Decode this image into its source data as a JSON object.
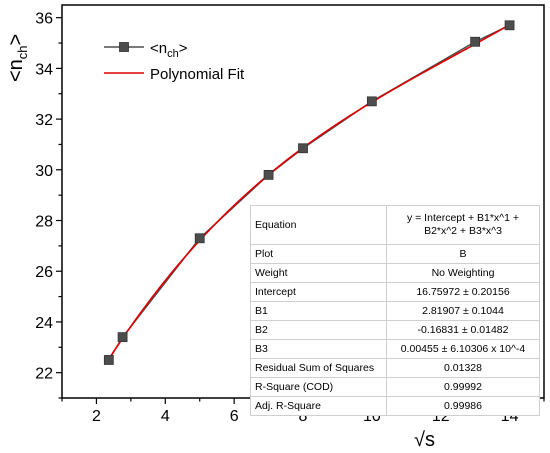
{
  "chart_data": {
    "type": "line",
    "xlabel": "√s",
    "ylabel": "<n",
    "ylabel_sub": "ch",
    "ylabel_end": ">",
    "xlim": [
      1,
      15
    ],
    "ylim": [
      21,
      36.5
    ],
    "xticks": [
      2,
      4,
      6,
      8,
      10,
      12,
      14
    ],
    "yticks": [
      22,
      24,
      26,
      28,
      30,
      32,
      34,
      36
    ],
    "grid": false,
    "legend_position": "top-left",
    "series": [
      {
        "name": "<n",
        "name_sub": "ch",
        "name_end": ">",
        "kind": "line+square-markers",
        "color": "#4d4d4d",
        "x": [
          2.36,
          2.76,
          5.0,
          7.0,
          8.0,
          10.0,
          13.0,
          14.0
        ],
        "y": [
          22.5,
          23.4,
          27.3,
          29.8,
          30.85,
          32.7,
          35.05,
          35.7
        ]
      },
      {
        "name": "Polynomial Fit",
        "kind": "line",
        "color": "#e00000",
        "coefficients": {
          "intercept": 16.75972,
          "b1": 2.81907,
          "b2": -0.16831,
          "b3": 0.00455
        },
        "x_range": [
          2.36,
          14.0
        ]
      }
    ],
    "fit_table": [
      {
        "key": "Equation",
        "value": "y = Intercept + B1*x^1 + B2*x^2 + B3*x^3"
      },
      {
        "key": "Plot",
        "value": "B"
      },
      {
        "key": "Weight",
        "value": "No Weighting"
      },
      {
        "key": "Intercept",
        "value": "16.75972 ± 0.20156"
      },
      {
        "key": "B1",
        "value": "2.81907 ± 0.1044"
      },
      {
        "key": "B2",
        "value": "-0.16831 ± 0.01482"
      },
      {
        "key": "B3",
        "value": "0.00455 ± 6.10306 x 10^-4"
      },
      {
        "key": "Residual Sum of Squares",
        "value": "0.01328"
      },
      {
        "key": "R-Square (COD)",
        "value": "0.99992"
      },
      {
        "key": "Adj. R-Square",
        "value": "0.99986"
      }
    ]
  }
}
